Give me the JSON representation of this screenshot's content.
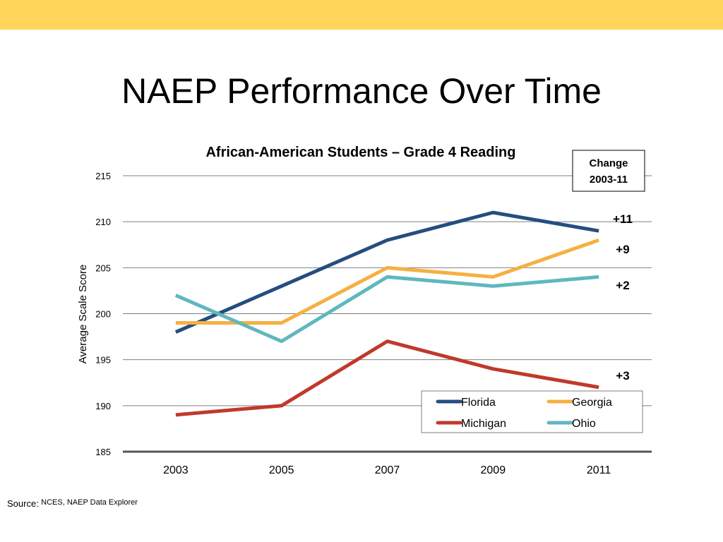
{
  "slide": {
    "title": "NAEP Performance Over Time",
    "band_color": "#FFD65A",
    "source_prefix": "Source:",
    "source_text": "NCES, NAEP Data Explorer"
  },
  "change_box": {
    "line1": "Change",
    "line2": "2003-11"
  },
  "chart_data": {
    "type": "line",
    "title": "African-American Students – Grade 4 Reading",
    "xlabel": "",
    "ylabel": "Average Scale Score",
    "x": [
      "2003",
      "2005",
      "2007",
      "2009",
      "2011"
    ],
    "ylim": [
      185,
      215
    ],
    "yticks": [
      185,
      190,
      195,
      200,
      205,
      210,
      215
    ],
    "grid": true,
    "legend_position": "bottom-right",
    "series": [
      {
        "name": "Florida",
        "color": "#254D80",
        "values": [
          198,
          203,
          208,
          211,
          209
        ],
        "change": "+11"
      },
      {
        "name": "Georgia",
        "color": "#F5B041",
        "values": [
          199,
          199,
          205,
          204,
          208
        ],
        "change": "+9"
      },
      {
        "name": "Michigan",
        "color": "#C0392B",
        "values": [
          189,
          190,
          197,
          194,
          192
        ],
        "change": "+3"
      },
      {
        "name": "Ohio",
        "color": "#5FB7BF",
        "values": [
          202,
          197,
          204,
          203,
          204
        ],
        "change": "+2"
      }
    ]
  }
}
